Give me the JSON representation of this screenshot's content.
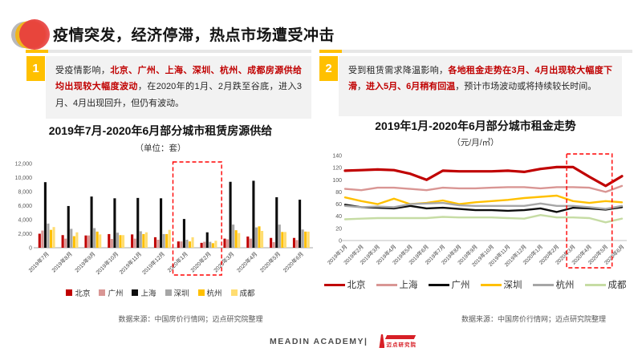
{
  "page": {
    "title": "疫情突发，经济停滞，热点市场遭受冲击",
    "footer_brand": "MEADIN ACADEMY|",
    "footer_logo_text": "迈点研究院"
  },
  "colors": {
    "accent_gold": "#FFC000",
    "accent_red": "#C00000",
    "highlight_red": "#FF0000",
    "note_bg": "#F2F2F2"
  },
  "notes": [
    {
      "number": "1",
      "segments": [
        {
          "text": "受疫情影响，",
          "em": false
        },
        {
          "text": "北京、广州、上海、深圳、杭州、成都房源供给均出现较大幅度波动",
          "em": true
        },
        {
          "text": "，在2020年的1月、2月跌至谷底，进入3月、4月出现回升，但仍有波动。",
          "em": false
        }
      ]
    },
    {
      "number": "2",
      "segments": [
        {
          "text": "受到租赁需求降温影响，",
          "em": false
        },
        {
          "text": "各地租金走势在3月、4月出现较大幅度下滑",
          "em": true
        },
        {
          "text": "，",
          "em": false
        },
        {
          "text": "进入5月、6月稍有回温",
          "em": true
        },
        {
          "text": "，预计市场波动或将持续较长时间。",
          "em": false
        }
      ]
    }
  ],
  "sources": {
    "left": "数据来源：中国房价行情网；迈点研究院整理",
    "right": "数据来源：中国房价行情网；迈点研究院整理"
  },
  "chart_data": [
    {
      "type": "bar",
      "title": "2019年7月-2020年6月部分城市租赁房源供给",
      "subtitle": "（单位：套）",
      "categories": [
        "2019年7月",
        "2019年8月",
        "2019年9月",
        "2019年10月",
        "2019年11月",
        "2019年12月",
        "2020年1月",
        "2020年2月",
        "2020年3月",
        "2020年4月",
        "2020年5月",
        "2020年6月"
      ],
      "series": [
        {
          "name": "北京",
          "color": "#C00000",
          "values": [
            2000,
            1800,
            1750,
            1950,
            1900,
            1500,
            900,
            700,
            1300,
            1600,
            1400,
            1400
          ]
        },
        {
          "name": "广州",
          "color": "#D99694",
          "values": [
            2450,
            1300,
            1750,
            1250,
            1300,
            1150,
            900,
            850,
            1200,
            1300,
            800,
            1100
          ]
        },
        {
          "name": "上海",
          "color": "#0D0D0D",
          "values": [
            9350,
            5950,
            7300,
            7050,
            7100,
            7050,
            4100,
            2200,
            9400,
            9550,
            7200,
            6850
          ]
        },
        {
          "name": "深圳",
          "color": "#A6A6A6",
          "values": [
            3450,
            2700,
            2800,
            2150,
            2350,
            1950,
            1150,
            850,
            3300,
            2900,
            3300,
            2600
          ]
        },
        {
          "name": "杭州",
          "color": "#FFC000",
          "values": [
            2550,
            1650,
            2300,
            1800,
            1950,
            1950,
            900,
            650,
            2500,
            3050,
            2250,
            2300
          ]
        },
        {
          "name": "成都",
          "color": "#FFDD71",
          "values": [
            2950,
            2200,
            1900,
            1800,
            2200,
            2550,
            1500,
            1000,
            2100,
            2400,
            2250,
            2300
          ]
        }
      ],
      "ylim": [
        0,
        12000
      ],
      "yticks": [
        0,
        2000,
        4000,
        6000,
        8000,
        10000,
        12000
      ],
      "grid": false,
      "legend_position": "bottom",
      "highlight": {
        "from_category": "2020年1月",
        "to_category": "2020年2月",
        "color": "#FF0000"
      }
    },
    {
      "type": "line",
      "title": "2019年1月-2020年6月部分城市租金走势",
      "subtitle": "（元/月/㎡）",
      "categories": [
        "2019年1月",
        "2019年2月",
        "2019年3月",
        "2019年4月",
        "2019年5月",
        "2019年6月",
        "2019年7月",
        "2019年8月",
        "2019年9月",
        "2019年10月",
        "2019年11月",
        "2019年12月",
        "2020年1月",
        "2020年2月",
        "2020年3月",
        "2020年4月",
        "2020年5月",
        "2020年6月"
      ],
      "series": [
        {
          "name": "北京",
          "color": "#C00000",
          "line_width": 3.2,
          "values": [
            115,
            116,
            117,
            116,
            110,
            100,
            115,
            114,
            114,
            114,
            115,
            113,
            118,
            121,
            121,
            105,
            90,
            106
          ]
        },
        {
          "name": "上海",
          "color": "#D99694",
          "line_width": 2.4,
          "values": [
            85,
            83,
            87,
            87,
            85,
            83,
            87,
            86,
            86,
            87,
            88,
            88,
            86,
            88,
            88,
            87,
            80,
            90
          ]
        },
        {
          "name": "广州",
          "color": "#0D0D0D",
          "line_width": 2.4,
          "values": [
            59,
            55,
            54,
            53,
            57,
            53,
            54,
            52,
            50,
            50,
            49,
            50,
            53,
            47,
            54,
            53,
            51,
            55
          ]
        },
        {
          "name": "深圳",
          "color": "#FFC000",
          "line_width": 2.4,
          "values": [
            71,
            65,
            60,
            69,
            60,
            62,
            66,
            60,
            63,
            65,
            67,
            70,
            72,
            74,
            65,
            62,
            65,
            63
          ]
        },
        {
          "name": "杭州",
          "color": "#A6A6A6",
          "line_width": 2.4,
          "values": [
            57,
            55,
            56,
            55,
            60,
            61,
            62,
            58,
            57,
            57,
            57,
            57,
            61,
            57,
            57,
            55,
            52,
            57
          ]
        },
        {
          "name": "成都",
          "color": "#C6DCA4",
          "line_width": 2.4,
          "values": [
            35,
            36,
            37,
            37,
            37,
            37,
            39,
            38,
            38,
            38,
            37,
            36,
            42,
            38,
            38,
            37,
            30,
            36
          ]
        }
      ],
      "ylim": [
        0,
        140
      ],
      "yticks": [
        0,
        20,
        40,
        60,
        80,
        100,
        120,
        140
      ],
      "grid": false,
      "legend_position": "bottom",
      "highlight": {
        "from_category": "2020年3月",
        "to_category": "2020年5月",
        "color": "#FF0000"
      }
    }
  ]
}
